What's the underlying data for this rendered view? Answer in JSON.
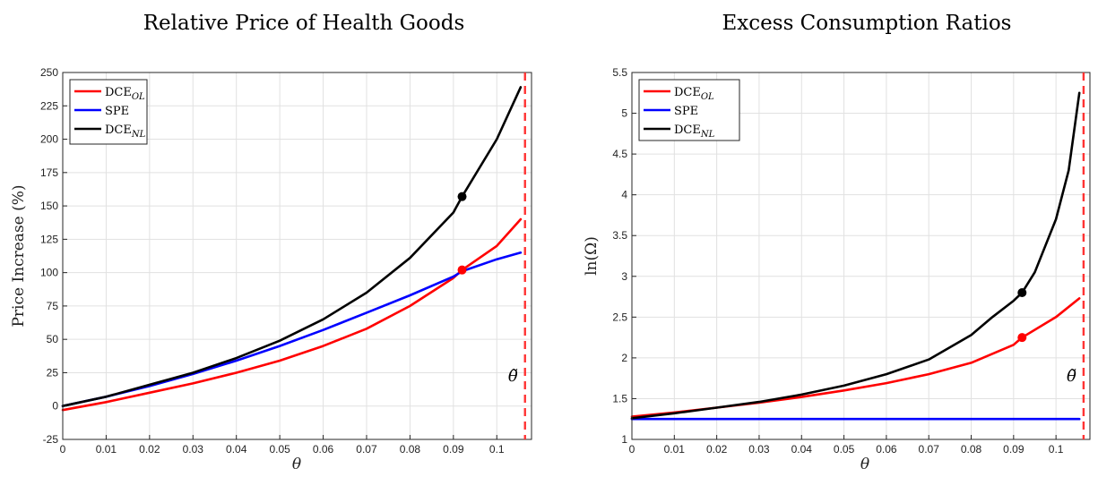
{
  "chart_data": [
    {
      "type": "line",
      "title": "Relative Price of Health Goods",
      "xlabel": "θ",
      "ylabel": "Price Increase (%)",
      "xlim": [
        0,
        0.108
      ],
      "ylim": [
        -25,
        250
      ],
      "xticks": [
        0,
        0.01,
        0.02,
        0.03,
        0.04,
        0.05,
        0.06,
        0.07,
        0.08,
        0.09,
        0.1
      ],
      "xtick_labels": [
        "0",
        "0.01",
        "0.02",
        "0.03",
        "0.04",
        "0.05",
        "0.06",
        "0.07",
        "0.08",
        "0.09",
        "0.1"
      ],
      "yticks": [
        -25,
        0,
        25,
        50,
        75,
        100,
        125,
        150,
        175,
        200,
        225,
        250
      ],
      "ytick_labels": [
        "-25",
        "0",
        "25",
        "50",
        "75",
        "100",
        "125",
        "150",
        "175",
        "200",
        "225",
        "250"
      ],
      "grid": true,
      "legend_position": "top-left",
      "vline": {
        "x": 0.1065,
        "label": "θ̃",
        "color": "#ff3333"
      },
      "series": [
        {
          "name": "DCE",
          "subscript": "OL",
          "color": "#ff0000",
          "x": [
            0,
            0.01,
            0.02,
            0.03,
            0.04,
            0.05,
            0.06,
            0.07,
            0.08,
            0.09,
            0.092,
            0.1,
            0.1055
          ],
          "y": [
            -3,
            3,
            10,
            17,
            25,
            34,
            45,
            58,
            75,
            96,
            102,
            120,
            140
          ]
        },
        {
          "name": "SPE",
          "color": "#0000ff",
          "x": [
            0,
            0.01,
            0.02,
            0.03,
            0.04,
            0.05,
            0.06,
            0.07,
            0.08,
            0.09,
            0.092,
            0.1,
            0.1055
          ],
          "y": [
            0,
            7,
            15,
            24,
            34,
            45,
            57,
            70,
            83,
            97,
            101,
            110,
            115
          ]
        },
        {
          "name": "DCE",
          "subscript": "NL",
          "color": "#000000",
          "x": [
            0,
            0.01,
            0.02,
            0.03,
            0.04,
            0.05,
            0.06,
            0.07,
            0.08,
            0.09,
            0.092,
            0.1,
            0.1055
          ],
          "y": [
            0,
            7,
            16,
            25,
            36,
            49,
            65,
            85,
            111,
            145,
            157,
            200,
            239
          ]
        }
      ],
      "markers": [
        {
          "x": 0.092,
          "y": 157,
          "color": "#000000"
        },
        {
          "x": 0.092,
          "y": 102,
          "color": "#ff0000"
        }
      ]
    },
    {
      "type": "line",
      "title": "Excess Consumption Ratios",
      "xlabel": "θ",
      "ylabel": "ln(Ω)",
      "xlim": [
        0,
        0.108
      ],
      "ylim": [
        1,
        5.5
      ],
      "xticks": [
        0,
        0.01,
        0.02,
        0.03,
        0.04,
        0.05,
        0.06,
        0.07,
        0.08,
        0.09,
        0.1
      ],
      "xtick_labels": [
        "0",
        "0.01",
        "0.02",
        "0.03",
        "0.04",
        "0.05",
        "0.06",
        "0.07",
        "0.08",
        "0.09",
        "0.1"
      ],
      "yticks": [
        1,
        1.5,
        2,
        2.5,
        3,
        3.5,
        4,
        4.5,
        5,
        5.5
      ],
      "ytick_labels": [
        "1",
        "1.5",
        "2",
        "2.5",
        "3",
        "3.5",
        "4",
        "4.5",
        "5",
        "5.5"
      ],
      "grid": true,
      "legend_position": "top-left",
      "vline": {
        "x": 0.1065,
        "label": "θ̃",
        "color": "#ff3333"
      },
      "series": [
        {
          "name": "DCE",
          "subscript": "OL",
          "color": "#ff0000",
          "x": [
            0,
            0.01,
            0.02,
            0.03,
            0.04,
            0.05,
            0.06,
            0.07,
            0.08,
            0.09,
            0.092,
            0.1,
            0.1055
          ],
          "y": [
            1.28,
            1.33,
            1.39,
            1.45,
            1.52,
            1.6,
            1.69,
            1.8,
            1.94,
            2.16,
            2.25,
            2.5,
            2.73
          ]
        },
        {
          "name": "SPE",
          "color": "#0000ff",
          "x": [
            0,
            0.1055
          ],
          "y": [
            1.25,
            1.25
          ]
        },
        {
          "name": "DCE",
          "subscript": "NL",
          "color": "#000000",
          "x": [
            0,
            0.01,
            0.02,
            0.03,
            0.04,
            0.05,
            0.06,
            0.07,
            0.08,
            0.085,
            0.09,
            0.092,
            0.095,
            0.1,
            0.103,
            0.1055
          ],
          "y": [
            1.26,
            1.32,
            1.39,
            1.46,
            1.55,
            1.66,
            1.8,
            1.98,
            2.28,
            2.5,
            2.7,
            2.8,
            3.05,
            3.7,
            4.3,
            5.25
          ]
        }
      ],
      "markers": [
        {
          "x": 0.092,
          "y": 2.8,
          "color": "#000000"
        },
        {
          "x": 0.092,
          "y": 2.25,
          "color": "#ff0000"
        }
      ]
    }
  ]
}
